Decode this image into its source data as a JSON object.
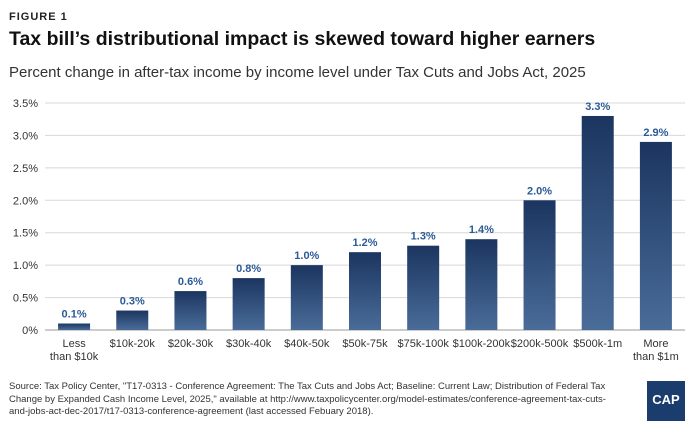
{
  "figure_label": "FIGURE 1",
  "title": "Tax bill’s distributional impact is skewed toward higher earners",
  "subtitle": "Percent change in after-tax income by income level under Tax Cuts and Jobs Act, 2025",
  "source": "Source: Tax Policy Center, \"T17-0313 - Conference Agreement: The Tax Cuts and Jobs Act; Baseline: Current Law; Distribution of Federal Tax Change by Expanded Cash Income Level, 2025,\" available at http://www.taxpolicycenter.org/model-estimates/conference-agreement-tax-cuts-and-jobs-act-dec-2017/t17-0313-conference-agreement (last accessed Febuary 2018).",
  "logo_text": "CAP",
  "colors": {
    "bar_top": "#1b3560",
    "bar_bottom": "#4a6c99",
    "value_label": "#2b5a96",
    "grid": "#d8d8d8"
  },
  "chart_data": {
    "type": "bar",
    "categories": [
      "Less than $10k",
      "$10k-20k",
      "$20k-30k",
      "$30k-40k",
      "$40k-50k",
      "$50k-75k",
      "$75k-100k",
      "$100k-200k",
      "$200k-500k",
      "$500k-1m",
      "More than $1m"
    ],
    "category_lines": [
      [
        "Less",
        "than $10k"
      ],
      [
        "$10k-20k"
      ],
      [
        "$20k-30k"
      ],
      [
        "$30k-40k"
      ],
      [
        "$40k-50k"
      ],
      [
        "$50k-75k"
      ],
      [
        "$75k-100k"
      ],
      [
        "$100k-200k"
      ],
      [
        "$200k-500k"
      ],
      [
        "$500k-1m"
      ],
      [
        "More",
        "than $1m"
      ]
    ],
    "values": [
      0.1,
      0.3,
      0.6,
      0.8,
      1.0,
      1.2,
      1.3,
      1.4,
      2.0,
      3.3,
      2.9
    ],
    "value_labels": [
      "0.1%",
      "0.3%",
      "0.6%",
      "0.8%",
      "1.0%",
      "1.2%",
      "1.3%",
      "1.4%",
      "2.0%",
      "3.3%",
      "2.9%"
    ],
    "yticks": [
      0,
      0.5,
      1.0,
      1.5,
      2.0,
      2.5,
      3.0,
      3.5
    ],
    "ytick_labels": [
      "0%",
      "0.5%",
      "1.0%",
      "1.5%",
      "2.0%",
      "2.5%",
      "3.0%",
      "3.5%"
    ],
    "ylim": [
      0,
      3.5
    ],
    "grid": true
  }
}
